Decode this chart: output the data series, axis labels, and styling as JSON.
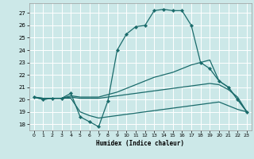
{
  "xlabel": "Humidex (Indice chaleur)",
  "bg_color": "#cce8e8",
  "grid_color": "#ffffff",
  "line_color": "#1a6b6b",
  "xlim": [
    -0.5,
    23.5
  ],
  "ylim": [
    17.5,
    27.8
  ],
  "xticks": [
    0,
    1,
    2,
    3,
    4,
    5,
    6,
    7,
    8,
    9,
    10,
    11,
    12,
    13,
    14,
    15,
    16,
    17,
    18,
    19,
    20,
    21,
    22,
    23
  ],
  "yticks": [
    18,
    19,
    20,
    21,
    22,
    23,
    24,
    25,
    26,
    27
  ],
  "series": [
    {
      "x": [
        0,
        1,
        2,
        3,
        4,
        5,
        6,
        7,
        8,
        9,
        10,
        11,
        12,
        13,
        14,
        15,
        16,
        17,
        18,
        19,
        20,
        21,
        22,
        23
      ],
      "y": [
        20.2,
        20.0,
        20.1,
        20.1,
        20.5,
        18.6,
        18.2,
        17.8,
        19.9,
        24.0,
        25.3,
        25.9,
        26.0,
        27.2,
        27.3,
        27.2,
        27.2,
        26.0,
        23.0,
        22.5,
        21.5,
        21.0,
        20.0,
        19.0
      ],
      "markers": true
    },
    {
      "x": [
        0,
        1,
        2,
        3,
        4,
        5,
        6,
        7,
        8,
        9,
        10,
        11,
        12,
        13,
        14,
        15,
        16,
        17,
        18,
        19,
        20,
        21,
        22,
        23
      ],
      "y": [
        20.2,
        20.1,
        20.1,
        20.1,
        20.3,
        20.2,
        20.2,
        20.2,
        20.4,
        20.6,
        20.9,
        21.2,
        21.5,
        21.8,
        22.0,
        22.2,
        22.5,
        22.8,
        23.0,
        23.2,
        21.5,
        21.0,
        20.0,
        19.0
      ],
      "markers": false
    },
    {
      "x": [
        0,
        1,
        2,
        3,
        4,
        5,
        6,
        7,
        8,
        9,
        10,
        11,
        12,
        13,
        14,
        15,
        16,
        17,
        18,
        19,
        20,
        21,
        22,
        23
      ],
      "y": [
        20.2,
        20.1,
        20.1,
        20.1,
        20.2,
        20.1,
        20.1,
        20.1,
        20.2,
        20.3,
        20.4,
        20.5,
        20.6,
        20.7,
        20.8,
        20.9,
        21.0,
        21.1,
        21.2,
        21.3,
        21.2,
        20.8,
        20.2,
        19.0
      ],
      "markers": false
    },
    {
      "x": [
        0,
        1,
        2,
        3,
        4,
        5,
        6,
        7,
        8,
        9,
        10,
        11,
        12,
        13,
        14,
        15,
        16,
        17,
        18,
        19,
        20,
        21,
        22,
        23
      ],
      "y": [
        20.2,
        20.0,
        20.1,
        20.1,
        20.1,
        19.0,
        18.7,
        18.5,
        18.6,
        18.7,
        18.8,
        18.9,
        19.0,
        19.1,
        19.2,
        19.3,
        19.4,
        19.5,
        19.6,
        19.7,
        19.8,
        19.5,
        19.2,
        19.0
      ],
      "markers": false
    }
  ]
}
